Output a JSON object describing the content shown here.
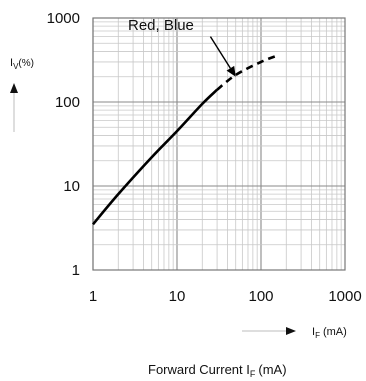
{
  "chart_data": {
    "type": "line",
    "title": "",
    "xscale": "log",
    "yscale": "log",
    "xlim": [
      1,
      1000
    ],
    "ylim": [
      1,
      1000
    ],
    "xticks": [
      "1",
      "10",
      "100",
      "1000"
    ],
    "yticks": [
      "1",
      "10",
      "100",
      "1000"
    ],
    "grid": true,
    "ylabel_main": "I",
    "ylabel_sub": "V",
    "ylabel_unit": "(%)",
    "xcaption_main": "I",
    "xcaption_sub": "F",
    "xcaption_unit": "(mA)",
    "xlabel_main": "Forward Current I",
    "xlabel_sub": "F",
    "xlabel_unit": "(mA)",
    "annotation": "Red, Blue",
    "series": [
      {
        "segments": [
          {
            "style": "solid",
            "x": [
              1,
              2,
              5,
              10,
              20,
              30
            ],
            "y": [
              3.5,
              8,
              22,
              45,
              95,
              140
            ]
          },
          {
            "style": "dashed",
            "x": [
              30,
              50,
              100,
              160
            ],
            "y": [
              140,
              210,
              300,
              360
            ]
          }
        ]
      }
    ],
    "arrow": {
      "from": [
        25,
        600
      ],
      "to": [
        50,
        200
      ]
    }
  }
}
